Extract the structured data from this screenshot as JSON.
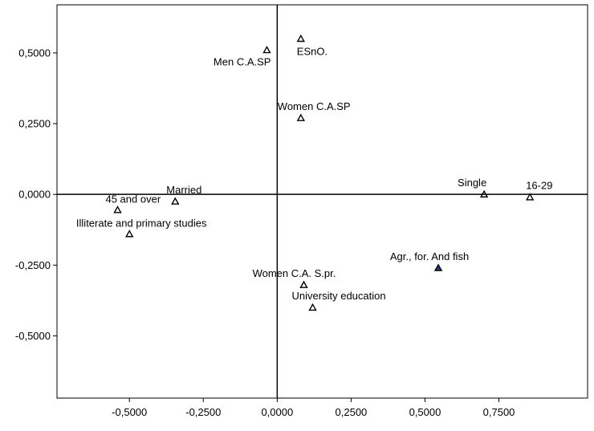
{
  "chart_data": {
    "type": "scatter",
    "title": "",
    "xlabel": "",
    "ylabel": "",
    "xlim": [
      -0.745,
      1.05
    ],
    "ylim": [
      -0.72,
      0.67
    ],
    "x_ticks": [
      {
        "value": -0.5,
        "label": "-0,5000"
      },
      {
        "value": -0.25,
        "label": "-0,2500"
      },
      {
        "value": 0.0,
        "label": "0,0000"
      },
      {
        "value": 0.25,
        "label": "0,2500"
      },
      {
        "value": 0.5,
        "label": "0,5000"
      },
      {
        "value": 0.75,
        "label": "0,7500"
      }
    ],
    "y_ticks": [
      {
        "value": 0.5,
        "label": "0,5000"
      },
      {
        "value": 0.25,
        "label": "0,2500"
      },
      {
        "value": 0.0,
        "label": "0,0000"
      },
      {
        "value": -0.25,
        "label": "-0,2500"
      },
      {
        "value": -0.5,
        "label": "-0,5000"
      }
    ],
    "reference_lines": {
      "x": 0.0,
      "y": 0.0
    },
    "grid": false,
    "points": [
      {
        "label": "Men C.A.SP",
        "x": -0.035,
        "y": 0.51,
        "anchor": "end",
        "dx": 5,
        "dy": 19,
        "color": "#000000"
      },
      {
        "label": "ESnO.",
        "x": 0.08,
        "y": 0.55,
        "anchor": "start",
        "dx": -5,
        "dy": 20,
        "color": "#000000"
      },
      {
        "label": "Women C.A.SP",
        "x": 0.08,
        "y": 0.27,
        "anchor": "start",
        "dx": -29,
        "dy": -10,
        "color": "#000000"
      },
      {
        "label": "Married",
        "x": -0.345,
        "y": -0.025,
        "anchor": "start",
        "dx": -11,
        "dy": -10,
        "color": "#000000"
      },
      {
        "label": "45  and over",
        "x": -0.54,
        "y": -0.055,
        "anchor": "start",
        "dx": -15,
        "dy": -9,
        "color": "#000000"
      },
      {
        "label": "Illiterate and primary studies",
        "x": -0.5,
        "y": -0.14,
        "anchor": "middle",
        "dx": 15,
        "dy": -9,
        "color": "#000000"
      },
      {
        "label": "Single",
        "x": 0.7,
        "y": 0.0,
        "anchor": "middle",
        "dx": -15,
        "dy": -10,
        "color": "#000000"
      },
      {
        "label": "16-29",
        "x": 0.855,
        "y": -0.01,
        "anchor": "start",
        "dx": -5,
        "dy": -10,
        "color": "#000000"
      },
      {
        "label": "Agr., for. And fish",
        "x": 0.545,
        "y": -0.26,
        "anchor": "middle",
        "dx": -11,
        "dy": -10,
        "color": "#2b3a8a"
      },
      {
        "label": "Women C.A. S.pr.",
        "x": 0.09,
        "y": -0.32,
        "anchor": "middle",
        "dx": -12,
        "dy": -10,
        "color": "#000000"
      },
      {
        "label": "University education",
        "x": 0.12,
        "y": -0.4,
        "anchor": "start",
        "dx": -26,
        "dy": -10,
        "color": "#000000"
      }
    ],
    "colors": {
      "frame": "#000000",
      "marker_default": "#000000",
      "marker_highlight": "#2b3a8a"
    }
  }
}
